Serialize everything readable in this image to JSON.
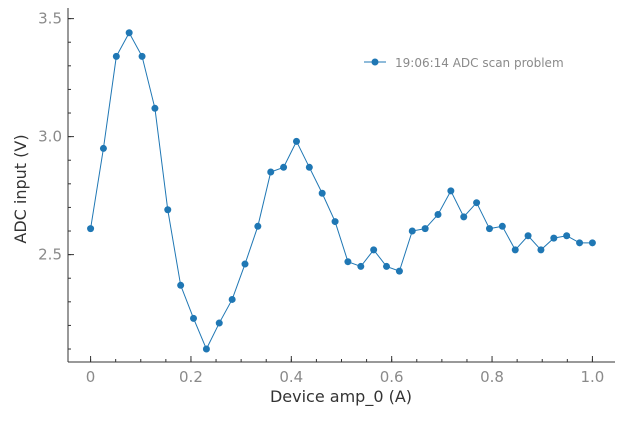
{
  "chart_data": {
    "type": "line",
    "title": "",
    "xlabel": "Device amp_0 (A)",
    "ylabel": "ADC input (V)",
    "xlim": [
      -0.045,
      1.045
    ],
    "ylim": [
      2.045,
      3.545
    ],
    "xticks": [
      0,
      0.2,
      0.4,
      0.6,
      0.8,
      1.0
    ],
    "xtick_labels": [
      "0",
      "0.2",
      "0.4",
      "0.6",
      "0.8",
      "1.0"
    ],
    "yticks": [
      2.5,
      3.0,
      3.5
    ],
    "ytick_labels": [
      "2.5",
      "3.0",
      "3.5"
    ],
    "x_minor_step": 0.05,
    "y_minor_step": 0.1,
    "grid": false,
    "legend_position": "top-right",
    "line_color": "#1f77b4",
    "marker_color": "#1f77b4",
    "axis_color": "#333333",
    "tick_label_color": "#8a8a8a",
    "series": [
      {
        "name": "19:06:14 ADC scan problem",
        "x": [
          0.0,
          0.0256,
          0.0513,
          0.0769,
          0.1026,
          0.1282,
          0.1538,
          0.1795,
          0.2051,
          0.2308,
          0.2564,
          0.2821,
          0.3077,
          0.3333,
          0.359,
          0.3846,
          0.4103,
          0.4359,
          0.4615,
          0.4872,
          0.5128,
          0.5385,
          0.5641,
          0.5897,
          0.6154,
          0.641,
          0.6667,
          0.6923,
          0.7179,
          0.7436,
          0.7692,
          0.7949,
          0.8205,
          0.8462,
          0.8718,
          0.8974,
          0.9231,
          0.9487,
          0.9744,
          1.0
        ],
        "y": [
          2.61,
          2.95,
          3.34,
          3.44,
          3.34,
          3.12,
          2.69,
          2.37,
          2.23,
          2.1,
          2.21,
          2.31,
          2.46,
          2.62,
          2.85,
          2.87,
          2.98,
          2.87,
          2.76,
          2.64,
          2.47,
          2.45,
          2.52,
          2.45,
          2.43,
          2.6,
          2.61,
          2.67,
          2.77,
          2.66,
          2.72,
          2.61,
          2.62,
          2.52,
          2.58,
          2.52,
          2.57,
          2.58,
          2.55,
          2.55
        ]
      }
    ]
  }
}
